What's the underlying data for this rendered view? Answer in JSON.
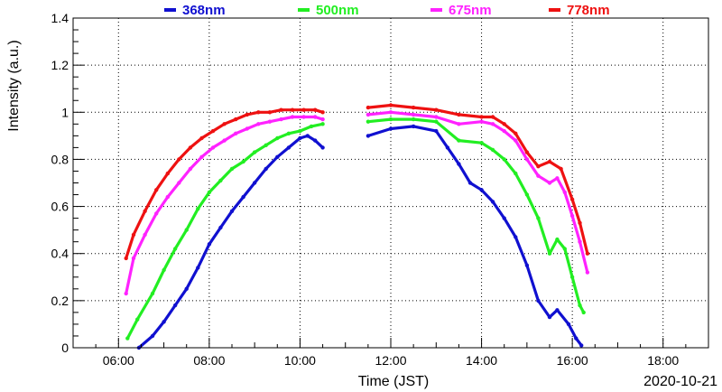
{
  "chart_data": {
    "type": "scatter",
    "xlabel": "Time (JST)",
    "ylabel": "Intensity (a.u.)",
    "date": "2020-10-21",
    "xlim": [
      "05:00",
      "19:00"
    ],
    "ylim": [
      0,
      1.4
    ],
    "x_ticks": [
      "06:00",
      "08:00",
      "10:00",
      "12:00",
      "14:00",
      "16:00",
      "18:00"
    ],
    "y_ticks": [
      "0",
      "0.2",
      "0.4",
      "0.6",
      "0.8",
      "1",
      "1.2",
      "1.4"
    ],
    "grid": true,
    "legend_position": "top",
    "series": [
      {
        "name": "368nm",
        "color": "#1010d0",
        "points": [
          [
            "06:27",
            0.0
          ],
          [
            "06:45",
            0.05
          ],
          [
            "07:00",
            0.11
          ],
          [
            "07:15",
            0.18
          ],
          [
            "07:30",
            0.25
          ],
          [
            "07:45",
            0.34
          ],
          [
            "08:00",
            0.44
          ],
          [
            "08:15",
            0.51
          ],
          [
            "08:30",
            0.58
          ],
          [
            "08:45",
            0.64
          ],
          [
            "09:00",
            0.7
          ],
          [
            "09:15",
            0.76
          ],
          [
            "09:30",
            0.81
          ],
          [
            "09:45",
            0.85
          ],
          [
            "10:00",
            0.89
          ],
          [
            "10:10",
            0.9
          ],
          [
            "10:20",
            0.88
          ],
          [
            "10:30",
            0.85
          ],
          [
            "11:30",
            0.9
          ],
          [
            "12:00",
            0.93
          ],
          [
            "12:30",
            0.94
          ],
          [
            "13:00",
            0.92
          ],
          [
            "13:15",
            0.85
          ],
          [
            "13:30",
            0.78
          ],
          [
            "13:45",
            0.7
          ],
          [
            "14:00",
            0.67
          ],
          [
            "14:15",
            0.62
          ],
          [
            "14:30",
            0.55
          ],
          [
            "14:45",
            0.47
          ],
          [
            "15:00",
            0.35
          ],
          [
            "15:15",
            0.2
          ],
          [
            "15:30",
            0.13
          ],
          [
            "15:40",
            0.16
          ],
          [
            "15:55",
            0.1
          ],
          [
            "16:05",
            0.04
          ],
          [
            "16:12",
            0.01
          ]
        ]
      },
      {
        "name": "500nm",
        "color": "#22ee22",
        "points": [
          [
            "06:12",
            0.04
          ],
          [
            "06:25",
            0.12
          ],
          [
            "06:45",
            0.23
          ],
          [
            "07:00",
            0.33
          ],
          [
            "07:15",
            0.42
          ],
          [
            "07:30",
            0.5
          ],
          [
            "07:45",
            0.59
          ],
          [
            "08:00",
            0.66
          ],
          [
            "08:15",
            0.71
          ],
          [
            "08:30",
            0.76
          ],
          [
            "08:45",
            0.79
          ],
          [
            "09:00",
            0.83
          ],
          [
            "09:15",
            0.86
          ],
          [
            "09:30",
            0.89
          ],
          [
            "09:45",
            0.91
          ],
          [
            "10:00",
            0.92
          ],
          [
            "10:15",
            0.94
          ],
          [
            "10:30",
            0.95
          ],
          [
            "11:30",
            0.96
          ],
          [
            "12:00",
            0.97
          ],
          [
            "12:30",
            0.97
          ],
          [
            "13:00",
            0.96
          ],
          [
            "13:30",
            0.88
          ],
          [
            "14:00",
            0.87
          ],
          [
            "14:15",
            0.84
          ],
          [
            "14:30",
            0.8
          ],
          [
            "14:45",
            0.74
          ],
          [
            "15:00",
            0.65
          ],
          [
            "15:15",
            0.55
          ],
          [
            "15:30",
            0.4
          ],
          [
            "15:40",
            0.46
          ],
          [
            "15:50",
            0.42
          ],
          [
            "16:00",
            0.3
          ],
          [
            "16:10",
            0.18
          ],
          [
            "16:15",
            0.15
          ]
        ]
      },
      {
        "name": "675nm",
        "color": "#ff22ff",
        "points": [
          [
            "06:10",
            0.23
          ],
          [
            "06:20",
            0.38
          ],
          [
            "06:35",
            0.48
          ],
          [
            "06:50",
            0.57
          ],
          [
            "07:05",
            0.64
          ],
          [
            "07:20",
            0.7
          ],
          [
            "07:35",
            0.76
          ],
          [
            "07:50",
            0.81
          ],
          [
            "08:05",
            0.85
          ],
          [
            "08:20",
            0.88
          ],
          [
            "08:35",
            0.91
          ],
          [
            "08:50",
            0.93
          ],
          [
            "09:05",
            0.95
          ],
          [
            "09:20",
            0.96
          ],
          [
            "09:35",
            0.97
          ],
          [
            "09:50",
            0.98
          ],
          [
            "10:05",
            0.98
          ],
          [
            "10:20",
            0.98
          ],
          [
            "10:30",
            0.97
          ],
          [
            "11:30",
            0.99
          ],
          [
            "12:00",
            1.0
          ],
          [
            "12:30",
            0.99
          ],
          [
            "13:00",
            0.98
          ],
          [
            "13:30",
            0.95
          ],
          [
            "14:00",
            0.96
          ],
          [
            "14:15",
            0.95
          ],
          [
            "14:30",
            0.92
          ],
          [
            "14:45",
            0.88
          ],
          [
            "15:00",
            0.8
          ],
          [
            "15:15",
            0.73
          ],
          [
            "15:30",
            0.7
          ],
          [
            "15:40",
            0.72
          ],
          [
            "15:50",
            0.66
          ],
          [
            "16:00",
            0.56
          ],
          [
            "16:10",
            0.45
          ],
          [
            "16:20",
            0.32
          ]
        ]
      },
      {
        "name": "778nm",
        "color": "#ee1111",
        "points": [
          [
            "06:10",
            0.38
          ],
          [
            "06:20",
            0.48
          ],
          [
            "06:35",
            0.58
          ],
          [
            "06:50",
            0.67
          ],
          [
            "07:05",
            0.74
          ],
          [
            "07:20",
            0.8
          ],
          [
            "07:35",
            0.85
          ],
          [
            "07:50",
            0.89
          ],
          [
            "08:05",
            0.92
          ],
          [
            "08:20",
            0.95
          ],
          [
            "08:35",
            0.97
          ],
          [
            "08:50",
            0.99
          ],
          [
            "09:05",
            1.0
          ],
          [
            "09:20",
            1.0
          ],
          [
            "09:35",
            1.01
          ],
          [
            "09:50",
            1.01
          ],
          [
            "10:05",
            1.01
          ],
          [
            "10:20",
            1.01
          ],
          [
            "10:30",
            1.0
          ],
          [
            "11:30",
            1.02
          ],
          [
            "12:00",
            1.03
          ],
          [
            "12:30",
            1.02
          ],
          [
            "13:00",
            1.01
          ],
          [
            "13:30",
            0.99
          ],
          [
            "14:00",
            0.98
          ],
          [
            "14:15",
            0.98
          ],
          [
            "14:30",
            0.95
          ],
          [
            "14:45",
            0.91
          ],
          [
            "15:00",
            0.83
          ],
          [
            "15:15",
            0.77
          ],
          [
            "15:30",
            0.79
          ],
          [
            "15:45",
            0.76
          ],
          [
            "16:00",
            0.63
          ],
          [
            "16:10",
            0.53
          ],
          [
            "16:20",
            0.4
          ]
        ]
      }
    ]
  }
}
